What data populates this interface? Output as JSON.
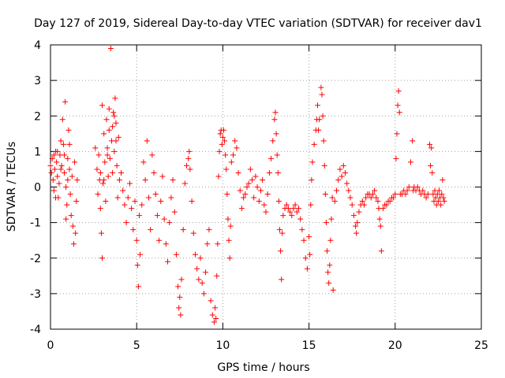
{
  "chart_data": {
    "type": "scatter",
    "title": "Day 127 of 2019, Sidereal Day-to-day VTEC variation (SDTVAR) for receiver dav1",
    "xlabel": "GPS time / hours",
    "ylabel": "SDTVAR / TECUs",
    "xlim": [
      0,
      25
    ],
    "ylim": [
      -4,
      4
    ],
    "xticks": [
      0,
      5,
      10,
      15,
      20,
      25
    ],
    "yticks": [
      -4,
      -3,
      -2,
      -1,
      0,
      1,
      2,
      3,
      4
    ],
    "grid": true,
    "marker": "+",
    "color": "#ff0000",
    "series": [
      {
        "name": "SDTVAR",
        "points": [
          [
            0.0,
            0.6
          ],
          [
            0.05,
            0.4
          ],
          [
            0.1,
            0.8
          ],
          [
            0.15,
            0.2
          ],
          [
            0.2,
            -0.1
          ],
          [
            0.25,
            0.5
          ],
          [
            0.3,
            1.0
          ],
          [
            0.35,
            0.7
          ],
          [
            0.4,
            0.3
          ],
          [
            0.45,
            -0.3
          ],
          [
            0.5,
            0.1
          ],
          [
            0.55,
            0.9
          ],
          [
            0.6,
            1.3
          ],
          [
            0.65,
            0.6
          ],
          [
            0.7,
            1.9
          ],
          [
            0.75,
            1.2
          ],
          [
            0.8,
            0.4
          ],
          [
            0.85,
            2.4
          ],
          [
            0.9,
            0.0
          ],
          [
            0.95,
            -0.5
          ],
          [
            1.0,
            0.8
          ],
          [
            1.05,
            1.6
          ],
          [
            1.1,
            0.5
          ],
          [
            1.15,
            -0.2
          ],
          [
            1.2,
            -0.8
          ],
          [
            1.25,
            0.3
          ],
          [
            1.3,
            -1.1
          ],
          [
            1.35,
            -1.6
          ],
          [
            1.4,
            0.7
          ],
          [
            1.45,
            -1.3
          ],
          [
            1.5,
            -0.4
          ],
          [
            1.55,
            0.2
          ],
          [
            1.1,
            1.2
          ],
          [
            0.2,
            0.9
          ],
          [
            0.4,
            1.0
          ],
          [
            0.6,
            0.5
          ],
          [
            0.8,
            0.9
          ],
          [
            1.0,
            0.2
          ],
          [
            0.3,
            -0.3
          ],
          [
            0.9,
            -0.9
          ],
          [
            2.6,
            1.1
          ],
          [
            2.7,
            0.5
          ],
          [
            2.75,
            -0.2
          ],
          [
            2.8,
            0.9
          ],
          [
            2.85,
            0.2
          ],
          [
            2.9,
            -0.6
          ],
          [
            2.95,
            -1.3
          ],
          [
            3.0,
            2.3
          ],
          [
            3.0,
            -2.0
          ],
          [
            3.05,
            0.1
          ],
          [
            3.1,
            1.5
          ],
          [
            3.15,
            0.7
          ],
          [
            3.2,
            -0.4
          ],
          [
            3.25,
            1.9
          ],
          [
            3.3,
            1.1
          ],
          [
            3.35,
            0.3
          ],
          [
            3.4,
            2.2
          ],
          [
            3.45,
            0.8
          ],
          [
            3.5,
            3.9
          ],
          [
            3.55,
            1.3
          ],
          [
            3.6,
            1.7
          ],
          [
            3.65,
            2.1
          ],
          [
            3.7,
            1.0
          ],
          [
            3.75,
            2.5
          ],
          [
            3.8,
            1.8
          ],
          [
            3.85,
            0.6
          ],
          [
            3.9,
            -0.3
          ],
          [
            3.95,
            1.4
          ],
          [
            4.0,
            0.2
          ],
          [
            3.3,
            0.9
          ],
          [
            3.4,
            1.6
          ],
          [
            3.6,
            0.4
          ],
          [
            3.7,
            2.0
          ],
          [
            3.8,
            1.3
          ],
          [
            2.9,
            0.4
          ],
          [
            3.1,
            0.2
          ],
          [
            4.1,
            0.4
          ],
          [
            4.2,
            -0.1
          ],
          [
            4.3,
            -0.5
          ],
          [
            4.4,
            -1.0
          ],
          [
            4.5,
            -0.3
          ],
          [
            4.6,
            0.1
          ],
          [
            4.7,
            -0.6
          ],
          [
            4.8,
            -1.2
          ],
          [
            4.9,
            -0.4
          ],
          [
            5.0,
            -1.5
          ],
          [
            5.05,
            -2.2
          ],
          [
            5.1,
            -2.8
          ],
          [
            5.15,
            -0.8
          ],
          [
            5.2,
            -1.9
          ],
          [
            5.3,
            -0.5
          ],
          [
            5.4,
            0.7
          ],
          [
            5.5,
            0.2
          ],
          [
            5.6,
            1.3
          ],
          [
            5.7,
            -0.3
          ],
          [
            5.8,
            -1.2
          ],
          [
            5.9,
            0.9
          ],
          [
            6.0,
            0.4
          ],
          [
            6.1,
            -0.2
          ],
          [
            6.2,
            -0.8
          ],
          [
            6.3,
            -1.5
          ],
          [
            6.4,
            -0.4
          ],
          [
            6.5,
            0.3
          ],
          [
            6.6,
            -0.9
          ],
          [
            6.7,
            -1.6
          ],
          [
            6.8,
            -2.1
          ],
          [
            6.9,
            -1.0
          ],
          [
            7.0,
            -0.3
          ],
          [
            7.1,
            0.2
          ],
          [
            7.2,
            -0.7
          ],
          [
            7.3,
            -1.9
          ],
          [
            7.4,
            -2.8
          ],
          [
            7.5,
            -3.1
          ],
          [
            7.45,
            -3.4
          ],
          [
            7.55,
            -3.6
          ],
          [
            7.6,
            -2.6
          ],
          [
            7.7,
            -1.2
          ],
          [
            7.8,
            0.1
          ],
          [
            7.9,
            0.6
          ],
          [
            8.0,
            0.8
          ],
          [
            8.05,
            1.0
          ],
          [
            8.1,
            0.5
          ],
          [
            8.2,
            -0.4
          ],
          [
            8.3,
            -1.3
          ],
          [
            8.4,
            -1.9
          ],
          [
            8.5,
            -2.3
          ],
          [
            8.6,
            -2.6
          ],
          [
            8.7,
            -2.0
          ],
          [
            8.8,
            -2.7
          ],
          [
            8.9,
            -3.0
          ],
          [
            9.0,
            -2.4
          ],
          [
            9.1,
            -1.6
          ],
          [
            9.2,
            -1.2
          ],
          [
            9.3,
            -3.2
          ],
          [
            9.4,
            -3.6
          ],
          [
            9.5,
            -3.8
          ],
          [
            9.55,
            -3.4
          ],
          [
            9.6,
            -3.7
          ],
          [
            9.65,
            -2.5
          ],
          [
            9.7,
            -1.6
          ],
          [
            9.75,
            0.3
          ],
          [
            9.8,
            1.0
          ],
          [
            9.85,
            1.5
          ],
          [
            9.9,
            1.6
          ],
          [
            9.95,
            1.2
          ],
          [
            10.0,
            1.4
          ],
          [
            10.05,
            1.6
          ],
          [
            10.1,
            1.3
          ],
          [
            10.15,
            0.9
          ],
          [
            10.2,
            0.5
          ],
          [
            10.25,
            -0.2
          ],
          [
            10.3,
            -0.9
          ],
          [
            10.35,
            -1.5
          ],
          [
            10.4,
            -2.0
          ],
          [
            10.45,
            -1.1
          ],
          [
            10.5,
            0.7
          ],
          [
            10.6,
            0.9
          ],
          [
            10.7,
            1.3
          ],
          [
            10.8,
            1.1
          ],
          [
            10.9,
            0.4
          ],
          [
            11.0,
            -0.1
          ],
          [
            11.1,
            -0.6
          ],
          [
            11.2,
            -0.3
          ],
          [
            11.3,
            -0.2
          ],
          [
            11.4,
            0.0
          ],
          [
            11.5,
            0.1
          ],
          [
            11.6,
            0.5
          ],
          [
            11.7,
            0.2
          ],
          [
            11.8,
            -0.3
          ],
          [
            11.9,
            0.3
          ],
          [
            12.0,
            0.0
          ],
          [
            12.1,
            -0.4
          ],
          [
            12.2,
            -0.1
          ],
          [
            12.3,
            0.2
          ],
          [
            12.4,
            -0.5
          ],
          [
            12.5,
            -0.7
          ],
          [
            12.6,
            -0.2
          ],
          [
            12.7,
            0.4
          ],
          [
            12.8,
            0.8
          ],
          [
            12.9,
            1.3
          ],
          [
            13.0,
            1.9
          ],
          [
            13.05,
            2.1
          ],
          [
            13.1,
            1.5
          ],
          [
            13.15,
            0.9
          ],
          [
            13.2,
            0.4
          ],
          [
            13.25,
            -0.4
          ],
          [
            13.3,
            -1.2
          ],
          [
            13.35,
            -1.8
          ],
          [
            13.4,
            -2.6
          ],
          [
            13.45,
            -1.3
          ],
          [
            13.5,
            -0.8
          ],
          [
            13.6,
            -0.6
          ],
          [
            13.7,
            -0.5
          ],
          [
            13.8,
            -0.6
          ],
          [
            13.9,
            -0.7
          ],
          [
            14.0,
            -0.8
          ],
          [
            14.1,
            -0.6
          ],
          [
            14.2,
            -0.5
          ],
          [
            14.3,
            -0.7
          ],
          [
            14.4,
            -0.6
          ],
          [
            14.5,
            -0.9
          ],
          [
            14.6,
            -1.2
          ],
          [
            14.7,
            -1.5
          ],
          [
            14.8,
            -2.0
          ],
          [
            14.9,
            -2.3
          ],
          [
            15.0,
            -1.4
          ],
          [
            15.05,
            -1.9
          ],
          [
            15.1,
            -0.5
          ],
          [
            15.15,
            0.2
          ],
          [
            15.2,
            0.7
          ],
          [
            15.3,
            1.2
          ],
          [
            15.4,
            1.6
          ],
          [
            15.45,
            1.9
          ],
          [
            15.5,
            2.3
          ],
          [
            15.55,
            1.6
          ],
          [
            15.6,
            1.9
          ],
          [
            15.7,
            2.8
          ],
          [
            15.75,
            2.6
          ],
          [
            15.8,
            2.0
          ],
          [
            15.85,
            1.3
          ],
          [
            15.9,
            0.6
          ],
          [
            15.95,
            -0.2
          ],
          [
            16.0,
            -1.0
          ],
          [
            16.05,
            -1.8
          ],
          [
            16.1,
            -2.4
          ],
          [
            16.15,
            -2.7
          ],
          [
            16.2,
            -2.2
          ],
          [
            16.25,
            -1.5
          ],
          [
            16.3,
            -0.9
          ],
          [
            16.35,
            -0.3
          ],
          [
            16.4,
            -2.9
          ],
          [
            16.5,
            -0.4
          ],
          [
            16.6,
            -0.1
          ],
          [
            16.7,
            0.2
          ],
          [
            16.8,
            0.5
          ],
          [
            16.9,
            0.3
          ],
          [
            17.0,
            0.6
          ],
          [
            17.1,
            0.4
          ],
          [
            17.2,
            0.1
          ],
          [
            17.3,
            -0.1
          ],
          [
            17.4,
            -0.3
          ],
          [
            17.5,
            -0.5
          ],
          [
            17.6,
            -0.8
          ],
          [
            17.7,
            -1.1
          ],
          [
            17.75,
            -1.3
          ],
          [
            17.8,
            -1.0
          ],
          [
            17.9,
            -0.7
          ],
          [
            18.0,
            -0.5
          ],
          [
            18.1,
            -0.4
          ],
          [
            18.2,
            -0.5
          ],
          [
            18.3,
            -0.3
          ],
          [
            18.4,
            -0.2
          ],
          [
            18.5,
            -0.2
          ],
          [
            18.6,
            -0.3
          ],
          [
            18.7,
            -0.2
          ],
          [
            18.8,
            -0.1
          ],
          [
            18.9,
            -0.3
          ],
          [
            19.0,
            -0.4
          ],
          [
            19.05,
            -0.6
          ],
          [
            19.1,
            -0.9
          ],
          [
            19.15,
            -1.1
          ],
          [
            19.2,
            -1.8
          ],
          [
            19.3,
            -0.6
          ],
          [
            19.4,
            -0.5
          ],
          [
            19.5,
            -0.5
          ],
          [
            19.6,
            -0.4
          ],
          [
            19.7,
            -0.4
          ],
          [
            19.8,
            -0.3
          ],
          [
            19.9,
            -0.3
          ],
          [
            20.0,
            -0.2
          ],
          [
            20.05,
            0.8
          ],
          [
            20.1,
            1.5
          ],
          [
            20.15,
            2.3
          ],
          [
            20.2,
            2.7
          ],
          [
            20.25,
            2.1
          ],
          [
            20.3,
            -0.2
          ],
          [
            20.4,
            -0.2
          ],
          [
            20.5,
            -0.1
          ],
          [
            20.6,
            -0.2
          ],
          [
            20.7,
            -0.1
          ],
          [
            20.8,
            0.0
          ],
          [
            20.9,
            0.7
          ],
          [
            21.0,
            1.3
          ],
          [
            21.05,
            -0.1
          ],
          [
            21.1,
            0.0
          ],
          [
            21.2,
            -0.1
          ],
          [
            21.3,
            0.0
          ],
          [
            21.4,
            -0.1
          ],
          [
            21.5,
            -0.2
          ],
          [
            21.6,
            -0.1
          ],
          [
            21.7,
            -0.2
          ],
          [
            21.8,
            -0.3
          ],
          [
            21.9,
            -0.2
          ],
          [
            22.0,
            1.2
          ],
          [
            22.05,
            0.6
          ],
          [
            22.1,
            1.1
          ],
          [
            22.15,
            0.4
          ],
          [
            22.2,
            -0.2
          ],
          [
            22.25,
            -0.4
          ],
          [
            22.3,
            -0.1
          ],
          [
            22.35,
            -0.3
          ],
          [
            22.4,
            -0.5
          ],
          [
            22.45,
            -0.2
          ],
          [
            22.5,
            -0.4
          ],
          [
            22.55,
            -0.1
          ],
          [
            22.6,
            -0.3
          ],
          [
            22.65,
            -0.5
          ],
          [
            22.7,
            -0.2
          ],
          [
            22.75,
            0.2
          ],
          [
            22.8,
            -0.3
          ],
          [
            22.85,
            -0.4
          ]
        ]
      }
    ]
  }
}
